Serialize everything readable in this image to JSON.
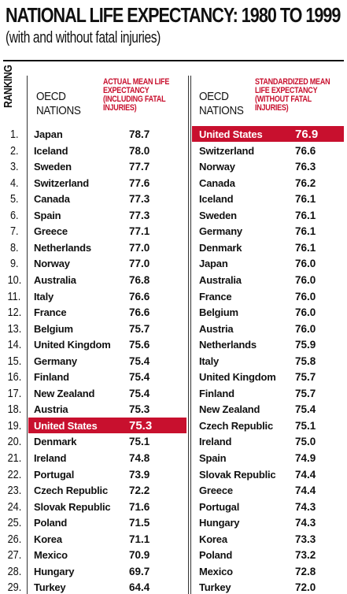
{
  "chart_data": {
    "type": "table",
    "title": "NATIONAL LIFE EXPECTANCY: 1980 TO 1999",
    "subtitle": "(with and without fatal injuries)",
    "rank_header": "RANKING",
    "highlight_color": "#c8102e",
    "ranks": [
      "1.",
      "2.",
      "3.",
      "4.",
      "5.",
      "6.",
      "7.",
      "8.",
      "9.",
      "10.",
      "11.",
      "12.",
      "13.",
      "14.",
      "15.",
      "16.",
      "17.",
      "18.",
      "19.",
      "20.",
      "21.",
      "22.",
      "23.",
      "24.",
      "25.",
      "26.",
      "27.",
      "28.",
      "29."
    ],
    "tables": [
      {
        "nation_header": [
          "OECD",
          "NATIONS"
        ],
        "value_header": [
          "ACTUAL MEAN LIFE",
          "EXPECTANCY",
          "(INCLUDING FATAL",
          "INJURIES)"
        ],
        "highlight_index": 18,
        "rows": [
          {
            "nation": "Japan",
            "value": "78.7"
          },
          {
            "nation": "Iceland",
            "value": "78.0"
          },
          {
            "nation": "Sweden",
            "value": "77.7"
          },
          {
            "nation": "Switzerland",
            "value": "77.6"
          },
          {
            "nation": "Canada",
            "value": "77.3"
          },
          {
            "nation": "Spain",
            "value": "77.3"
          },
          {
            "nation": "Greece",
            "value": "77.1"
          },
          {
            "nation": "Netherlands",
            "value": "77.0"
          },
          {
            "nation": "Norway",
            "value": "77.0"
          },
          {
            "nation": "Australia",
            "value": "76.8"
          },
          {
            "nation": "Italy",
            "value": "76.6"
          },
          {
            "nation": "France",
            "value": "76.6"
          },
          {
            "nation": "Belgium",
            "value": "75.7"
          },
          {
            "nation": "United Kingdom",
            "value": "75.6"
          },
          {
            "nation": "Germany",
            "value": "75.4"
          },
          {
            "nation": "Finland",
            "value": "75.4"
          },
          {
            "nation": "New Zealand",
            "value": "75.4"
          },
          {
            "nation": "Austria",
            "value": "75.3"
          },
          {
            "nation": "United States",
            "value": "75.3"
          },
          {
            "nation": "Denmark",
            "value": "75.1"
          },
          {
            "nation": "Ireland",
            "value": "74.8"
          },
          {
            "nation": "Portugal",
            "value": "73.9"
          },
          {
            "nation": "Czech Republic",
            "value": "72.2"
          },
          {
            "nation": "Slovak Republic",
            "value": "71.6"
          },
          {
            "nation": "Poland",
            "value": "71.5"
          },
          {
            "nation": "Korea",
            "value": "71.1"
          },
          {
            "nation": "Mexico",
            "value": "70.9"
          },
          {
            "nation": "Hungary",
            "value": "69.7"
          },
          {
            "nation": "Turkey",
            "value": "64.4"
          }
        ]
      },
      {
        "nation_header": [
          "OECD",
          "NATIONS"
        ],
        "value_header": [
          "STANDARDIZED MEAN",
          "LIFE EXPECTANCY",
          "(WITHOUT FATAL",
          "INJURIES)"
        ],
        "highlight_index": 0,
        "rows": [
          {
            "nation": "United States",
            "value": "76.9"
          },
          {
            "nation": "Switzerland",
            "value": "76.6"
          },
          {
            "nation": "Norway",
            "value": "76.3"
          },
          {
            "nation": "Canada",
            "value": "76.2"
          },
          {
            "nation": "Iceland",
            "value": "76.1"
          },
          {
            "nation": "Sweden",
            "value": "76.1"
          },
          {
            "nation": "Germany",
            "value": "76.1"
          },
          {
            "nation": "Denmark",
            "value": "76.1"
          },
          {
            "nation": "Japan",
            "value": "76.0"
          },
          {
            "nation": "Australia",
            "value": "76.0"
          },
          {
            "nation": "France",
            "value": "76.0"
          },
          {
            "nation": "Belgium",
            "value": "76.0"
          },
          {
            "nation": "Austria",
            "value": "76.0"
          },
          {
            "nation": "Netherlands",
            "value": "75.9"
          },
          {
            "nation": "Italy",
            "value": "75.8"
          },
          {
            "nation": "United Kingdom",
            "value": "75.7"
          },
          {
            "nation": "Finland",
            "value": "75.7"
          },
          {
            "nation": "New Zealand",
            "value": "75.4"
          },
          {
            "nation": "Czech Republic",
            "value": "75.1"
          },
          {
            "nation": "Ireland",
            "value": "75.0"
          },
          {
            "nation": "Spain",
            "value": "74.9"
          },
          {
            "nation": "Slovak Republic",
            "value": "74.4"
          },
          {
            "nation": "Greece",
            "value": "74.4"
          },
          {
            "nation": "Portugal",
            "value": "74.3"
          },
          {
            "nation": "Hungary",
            "value": "74.3"
          },
          {
            "nation": "Korea",
            "value": "73.3"
          },
          {
            "nation": "Poland",
            "value": "73.2"
          },
          {
            "nation": "Mexico",
            "value": "72.8"
          },
          {
            "nation": "Turkey",
            "value": "72.0"
          }
        ]
      }
    ]
  }
}
